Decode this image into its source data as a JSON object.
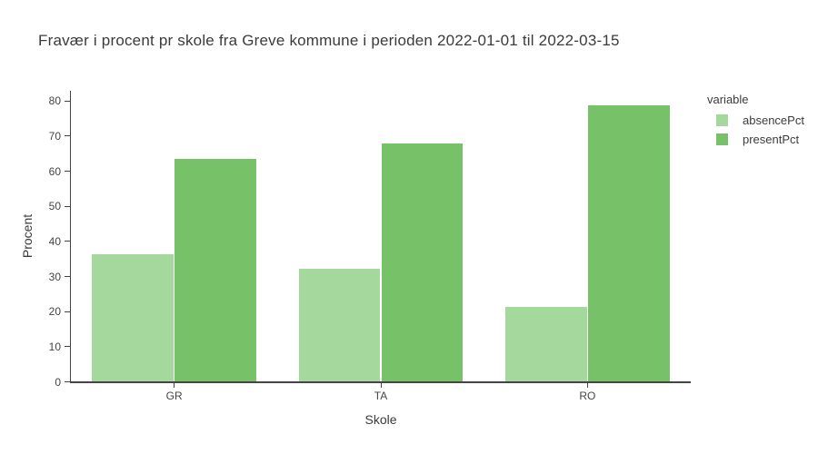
{
  "chart_data": {
    "type": "bar",
    "mode": "grouped",
    "title": "Fravær i procent pr skole fra Greve kommune i perioden 2022-01-01 til 2022-03-15",
    "xlabel": "Skole",
    "ylabel": "Procent",
    "legend_title": "variable",
    "legend_position": "right",
    "grid": false,
    "background_color": "#ffffff",
    "axis_color": "#444444",
    "text_color": "#3b3b3b",
    "categories": [
      "GR",
      "TA",
      "RO"
    ],
    "series": [
      {
        "name": "absencePct",
        "color": "#a5d89d",
        "values": [
          36.2,
          32.0,
          21.1
        ]
      },
      {
        "name": "presentPct",
        "color": "#77c268",
        "values": [
          63.4,
          67.9,
          78.7
        ]
      }
    ],
    "ylim": [
      0,
      82.8
    ],
    "yticks": [
      0,
      10,
      20,
      30,
      40,
      50,
      60,
      70,
      80
    ]
  }
}
